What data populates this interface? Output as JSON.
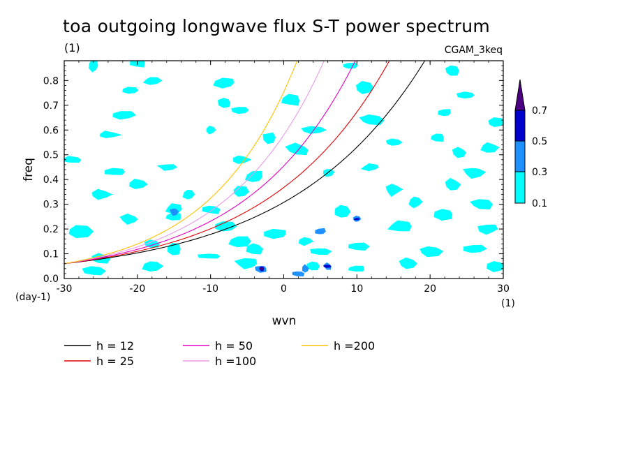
{
  "title": "toa outgoing longwave flux S-T power spectrum",
  "unit_label": "(1)",
  "dataset_label": "CGAM_3keq",
  "chart_data": {
    "type": "contour",
    "title": "toa outgoing longwave flux S-T power spectrum",
    "xlabel": "wvn",
    "ylabel": "freq",
    "xunit": "(1)",
    "yunit": "(day-1)",
    "xlim": [
      -30,
      30
    ],
    "ylim": [
      0,
      0.88
    ],
    "xticks": [
      -30,
      -20,
      -10,
      0,
      10,
      20,
      30
    ],
    "yticks": [
      0.0,
      0.1,
      0.2,
      0.3,
      0.4,
      0.5,
      0.6,
      0.7,
      0.8
    ],
    "xtick_labels": [
      "-30",
      "-20",
      "-10",
      "0",
      "10",
      "20",
      "30"
    ],
    "ytick_labels": [
      "0.0",
      "0.1",
      "0.2",
      "0.3",
      "0.4",
      "0.5",
      "0.6",
      "0.7",
      "0.8"
    ],
    "contour_levels": [
      0.1,
      0.3,
      0.5,
      0.7
    ],
    "colorbar_labels": [
      "0.1",
      "0.3",
      "0.5",
      "0.7"
    ],
    "colorbar_colors": [
      "#00ffff",
      "#1e90ff",
      "#0000cd",
      "#4b0082"
    ],
    "contour_patches": [
      {
        "level": 0.1,
        "points": [
          [
            -26,
            0.86
          ],
          [
            -25,
            0.08
          ],
          [
            -26,
            0.03
          ],
          [
            -18,
            0.05
          ],
          [
            -18,
            0.8
          ],
          [
            -20,
            0.87
          ],
          [
            -21,
            0.76
          ],
          [
            -15,
            0.12
          ],
          [
            -22,
            0.66
          ],
          [
            -24,
            0.58
          ],
          [
            -23,
            0.43
          ],
          [
            -20,
            0.38
          ],
          [
            -25,
            0.34
          ],
          [
            -16,
            0.45
          ],
          [
            -15,
            0.28
          ],
          [
            -21,
            0.24
          ],
          [
            -28,
            0.19
          ],
          [
            -18,
            0.14
          ],
          [
            -8,
            0.79
          ],
          [
            -8,
            0.71
          ],
          [
            -6,
            0.68
          ],
          [
            -10,
            0.6
          ],
          [
            -2,
            0.57
          ],
          [
            -6,
            0.48
          ],
          [
            -4,
            0.41
          ],
          [
            -6,
            0.35
          ],
          [
            -13,
            0.34
          ],
          [
            -10,
            0.28
          ],
          [
            -15,
            0.25
          ],
          [
            -8,
            0.21
          ],
          [
            -6,
            0.15
          ],
          [
            -1,
            0.18
          ],
          [
            3,
            0.15
          ],
          [
            -4,
            0.12
          ],
          [
            5,
            0.11
          ],
          [
            -10,
            0.09
          ],
          [
            -5,
            0.06
          ],
          [
            4,
            0.05
          ],
          [
            10,
            0.04
          ],
          [
            1,
            0.72
          ],
          [
            4,
            0.6
          ],
          [
            2,
            0.52
          ],
          [
            6,
            0.43
          ],
          [
            9,
            0.86
          ],
          [
            11,
            0.77
          ],
          [
            12,
            0.64
          ],
          [
            15,
            0.55
          ],
          [
            12,
            0.45
          ],
          [
            15,
            0.36
          ],
          [
            18,
            0.31
          ],
          [
            8,
            0.27
          ],
          [
            16,
            0.21
          ],
          [
            10,
            0.13
          ],
          [
            20,
            0.11
          ],
          [
            17,
            0.06
          ],
          [
            23,
            0.84
          ],
          [
            25,
            0.74
          ],
          [
            22,
            0.67
          ],
          [
            21,
            0.57
          ],
          [
            24,
            0.51
          ],
          [
            26,
            0.43
          ],
          [
            23,
            0.38
          ],
          [
            27,
            0.3
          ],
          [
            22,
            0.26
          ],
          [
            28,
            0.2
          ],
          [
            26,
            0.12
          ],
          [
            29,
            0.05
          ],
          [
            29,
            0.63
          ],
          [
            28,
            0.53
          ],
          [
            -29,
            0.48
          ]
        ]
      },
      {
        "level": 0.3,
        "points": [
          [
            -3,
            0.04
          ],
          [
            3,
            0.04
          ],
          [
            10,
            0.24
          ],
          [
            -15,
            0.27
          ],
          [
            2,
            0.02
          ],
          [
            6,
            0.05
          ],
          [
            5,
            0.19
          ]
        ]
      },
      {
        "level": 0.5,
        "points": [
          [
            -3,
            0.04
          ],
          [
            10,
            0.24
          ],
          [
            6,
            0.05
          ]
        ]
      },
      {
        "level": 0.7,
        "points": [
          [
            -3,
            0.04
          ]
        ]
      }
    ],
    "series": [
      {
        "name": "h = 12",
        "h": 12,
        "color": "#000000"
      },
      {
        "name": "h = 25",
        "h": 25,
        "color": "#e00000"
      },
      {
        "name": "h = 50",
        "h": 50,
        "color": "#e000c0"
      },
      {
        "name": "h =100",
        "h": 100,
        "color": "#e89ae8"
      },
      {
        "name": "h =200",
        "h": 200,
        "color": "#ffc000"
      }
    ],
    "legend_position": "bottom"
  }
}
